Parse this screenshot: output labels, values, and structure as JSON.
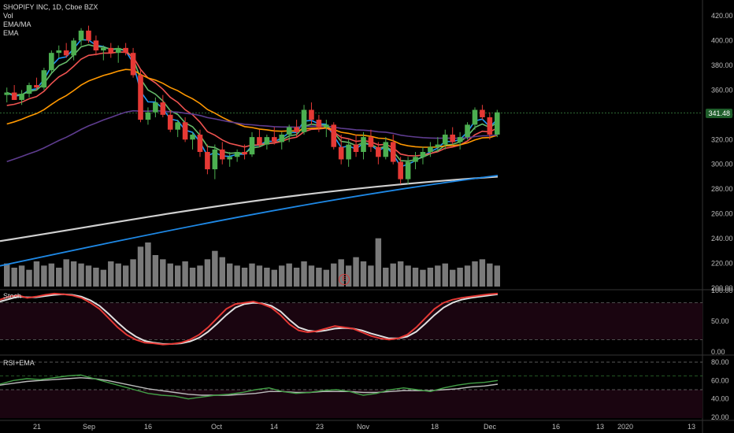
{
  "legend": {
    "symbol_line": "SHOPIFY INC, 1D, Cboe BZX",
    "vol": "Vol",
    "ema_ma": "EMA/MA",
    "ema": "EMA"
  },
  "panes": {
    "stoch_title": "Stoch",
    "rsi_title": "RSI+EMA"
  },
  "price_axis": {
    "labels": [
      "420.00",
      "400.00",
      "380.00",
      "360.00",
      "340.00",
      "320.00",
      "300.00",
      "280.00",
      "260.00",
      "240.00",
      "220.00",
      "200.00"
    ],
    "current_price": "341.48"
  },
  "stoch_axis": {
    "labels": [
      "100.00",
      "50.00",
      "0.00"
    ]
  },
  "rsi_axis": {
    "labels": [
      "80.00",
      "60.00",
      "40.00",
      "20.00"
    ]
  },
  "time_axis": {
    "labels": [
      "21",
      "Sep",
      "16",
      "Oct",
      "14",
      "23",
      "Nov",
      "18",
      "Dec",
      "16",
      "13",
      "2020",
      "13"
    ]
  },
  "earnings_marker": "E",
  "colors": {
    "bg": "#000000",
    "up": "#4caf50",
    "down": "#e53935",
    "ema_fast": "#2196f3",
    "ema_mid": "#66bb6a",
    "ema_red": "#ef5350",
    "ema_orange": "#ff9800",
    "ema_purple": "#5e3c8f",
    "ma_white": "#d0d0d0",
    "ma_blue": "#1e88e5",
    "volume": "#7a7a7a",
    "stoch_k": "#e53935",
    "stoch_d": "#e0e0e0",
    "rsi": "#43a047",
    "rsi_ema": "#bdbdbd",
    "band_fill": "#1a0510"
  },
  "chart_data": {
    "type": "candlestick",
    "price_ylim": [
      200,
      420
    ],
    "candles": [
      {
        "o": 356,
        "h": 362,
        "l": 350,
        "c": 358
      },
      {
        "o": 358,
        "h": 364,
        "l": 352,
        "c": 352
      },
      {
        "o": 352,
        "h": 360,
        "l": 348,
        "c": 357
      },
      {
        "o": 357,
        "h": 366,
        "l": 354,
        "c": 364
      },
      {
        "o": 364,
        "h": 370,
        "l": 360,
        "c": 362
      },
      {
        "o": 362,
        "h": 378,
        "l": 360,
        "c": 376
      },
      {
        "o": 376,
        "h": 392,
        "l": 374,
        "c": 390
      },
      {
        "o": 390,
        "h": 396,
        "l": 386,
        "c": 392
      },
      {
        "o": 392,
        "h": 398,
        "l": 386,
        "c": 388
      },
      {
        "o": 388,
        "h": 402,
        "l": 384,
        "c": 400
      },
      {
        "o": 400,
        "h": 410,
        "l": 396,
        "c": 408
      },
      {
        "o": 408,
        "h": 412,
        "l": 398,
        "c": 400
      },
      {
        "o": 400,
        "h": 404,
        "l": 388,
        "c": 392
      },
      {
        "o": 392,
        "h": 396,
        "l": 384,
        "c": 394
      },
      {
        "o": 394,
        "h": 398,
        "l": 386,
        "c": 390
      },
      {
        "o": 390,
        "h": 396,
        "l": 382,
        "c": 394
      },
      {
        "o": 394,
        "h": 398,
        "l": 388,
        "c": 390
      },
      {
        "o": 390,
        "h": 394,
        "l": 370,
        "c": 372
      },
      {
        "o": 372,
        "h": 376,
        "l": 334,
        "c": 336
      },
      {
        "o": 336,
        "h": 346,
        "l": 332,
        "c": 342
      },
      {
        "o": 342,
        "h": 354,
        "l": 338,
        "c": 350
      },
      {
        "o": 350,
        "h": 356,
        "l": 338,
        "c": 340
      },
      {
        "o": 340,
        "h": 344,
        "l": 326,
        "c": 328
      },
      {
        "o": 328,
        "h": 336,
        "l": 322,
        "c": 334
      },
      {
        "o": 334,
        "h": 338,
        "l": 318,
        "c": 320
      },
      {
        "o": 320,
        "h": 326,
        "l": 312,
        "c": 324
      },
      {
        "o": 324,
        "h": 328,
        "l": 306,
        "c": 310
      },
      {
        "o": 310,
        "h": 316,
        "l": 292,
        "c": 296
      },
      {
        "o": 296,
        "h": 316,
        "l": 288,
        "c": 312
      },
      {
        "o": 312,
        "h": 318,
        "l": 300,
        "c": 304
      },
      {
        "o": 304,
        "h": 310,
        "l": 298,
        "c": 306
      },
      {
        "o": 306,
        "h": 312,
        "l": 302,
        "c": 310
      },
      {
        "o": 310,
        "h": 316,
        "l": 304,
        "c": 308
      },
      {
        "o": 308,
        "h": 326,
        "l": 306,
        "c": 322
      },
      {
        "o": 322,
        "h": 328,
        "l": 314,
        "c": 316
      },
      {
        "o": 316,
        "h": 324,
        "l": 312,
        "c": 322
      },
      {
        "o": 322,
        "h": 330,
        "l": 316,
        "c": 318
      },
      {
        "o": 318,
        "h": 326,
        "l": 312,
        "c": 324
      },
      {
        "o": 324,
        "h": 332,
        "l": 318,
        "c": 330
      },
      {
        "o": 330,
        "h": 336,
        "l": 322,
        "c": 326
      },
      {
        "o": 326,
        "h": 348,
        "l": 324,
        "c": 344
      },
      {
        "o": 344,
        "h": 350,
        "l": 332,
        "c": 336
      },
      {
        "o": 336,
        "h": 340,
        "l": 326,
        "c": 330
      },
      {
        "o": 330,
        "h": 336,
        "l": 322,
        "c": 332
      },
      {
        "o": 332,
        "h": 334,
        "l": 312,
        "c": 314
      },
      {
        "o": 314,
        "h": 324,
        "l": 300,
        "c": 304
      },
      {
        "o": 304,
        "h": 320,
        "l": 298,
        "c": 316
      },
      {
        "o": 316,
        "h": 324,
        "l": 306,
        "c": 310
      },
      {
        "o": 310,
        "h": 326,
        "l": 304,
        "c": 322
      },
      {
        "o": 322,
        "h": 328,
        "l": 310,
        "c": 314
      },
      {
        "o": 314,
        "h": 318,
        "l": 300,
        "c": 306
      },
      {
        "o": 306,
        "h": 322,
        "l": 304,
        "c": 318
      },
      {
        "o": 318,
        "h": 324,
        "l": 300,
        "c": 302
      },
      {
        "o": 302,
        "h": 306,
        "l": 284,
        "c": 288
      },
      {
        "o": 288,
        "h": 306,
        "l": 284,
        "c": 302
      },
      {
        "o": 302,
        "h": 310,
        "l": 296,
        "c": 306
      },
      {
        "o": 306,
        "h": 314,
        "l": 300,
        "c": 310
      },
      {
        "o": 310,
        "h": 318,
        "l": 306,
        "c": 314
      },
      {
        "o": 314,
        "h": 322,
        "l": 310,
        "c": 316
      },
      {
        "o": 316,
        "h": 328,
        "l": 312,
        "c": 324
      },
      {
        "o": 324,
        "h": 330,
        "l": 316,
        "c": 318
      },
      {
        "o": 318,
        "h": 326,
        "l": 312,
        "c": 322
      },
      {
        "o": 322,
        "h": 334,
        "l": 320,
        "c": 332
      },
      {
        "o": 332,
        "h": 346,
        "l": 328,
        "c": 344
      },
      {
        "o": 344,
        "h": 348,
        "l": 336,
        "c": 338
      },
      {
        "o": 338,
        "h": 342,
        "l": 320,
        "c": 324
      },
      {
        "o": 324,
        "h": 344,
        "l": 322,
        "c": 342
      }
    ],
    "volume": [
      22,
      18,
      20,
      16,
      24,
      20,
      22,
      18,
      26,
      24,
      22,
      20,
      18,
      16,
      24,
      22,
      20,
      26,
      38,
      42,
      30,
      26,
      22,
      20,
      24,
      18,
      20,
      26,
      34,
      28,
      22,
      20,
      18,
      22,
      20,
      18,
      16,
      20,
      22,
      18,
      24,
      20,
      18,
      16,
      22,
      26,
      20,
      28,
      24,
      20,
      46,
      18,
      22,
      24,
      20,
      18,
      16,
      18,
      20,
      22,
      16,
      18,
      20,
      24,
      26,
      22,
      20
    ],
    "stoch_k": [
      85,
      90,
      92,
      88,
      90,
      93,
      95,
      94,
      92,
      88,
      80,
      70,
      55,
      40,
      28,
      20,
      15,
      14,
      12,
      13,
      15,
      20,
      28,
      40,
      55,
      70,
      78,
      80,
      82,
      78,
      72,
      60,
      45,
      35,
      32,
      34,
      38,
      42,
      40,
      38,
      32,
      26,
      22,
      20,
      22,
      28,
      40,
      55,
      70,
      80,
      85,
      88,
      90,
      92,
      94,
      95
    ],
    "stoch_d": [
      82,
      86,
      90,
      89,
      89,
      91,
      93,
      94,
      93,
      90,
      84,
      75,
      62,
      48,
      35,
      25,
      18,
      15,
      13,
      13,
      14,
      17,
      23,
      33,
      46,
      60,
      72,
      78,
      80,
      79,
      75,
      66,
      52,
      40,
      35,
      33,
      35,
      38,
      39,
      38,
      35,
      30,
      26,
      22,
      22,
      25,
      33,
      46,
      60,
      72,
      80,
      85,
      88,
      90,
      92,
      94
    ],
    "rsi": [
      56,
      60,
      62,
      61,
      63,
      65,
      66,
      62,
      58,
      54,
      50,
      46,
      44,
      43,
      40,
      42,
      44,
      45,
      47,
      50,
      52,
      48,
      46,
      47,
      49,
      50,
      48,
      44,
      46,
      50,
      52,
      50,
      48,
      52,
      55,
      57,
      58,
      60
    ],
    "rsi_ema": [
      55,
      57,
      59,
      60,
      61,
      62,
      63,
      62,
      60,
      57,
      54,
      51,
      49,
      47,
      45,
      44,
      44,
      44,
      45,
      46,
      48,
      48,
      47,
      47,
      48,
      48,
      48,
      47,
      47,
      48,
      49,
      49,
      49,
      50,
      51,
      53,
      54,
      56
    ]
  }
}
